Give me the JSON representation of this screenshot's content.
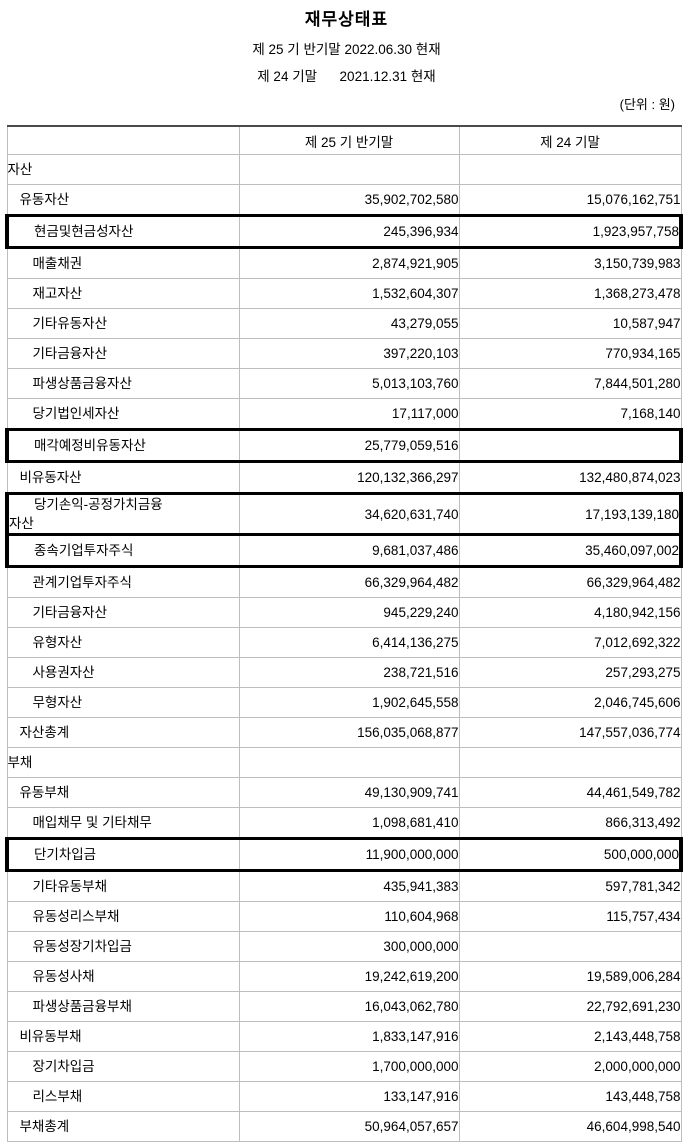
{
  "header": {
    "title": "재무상태표",
    "period_lines": [
      "제 25 기 반기말 2022.06.30 현재",
      "제 24 기말      2021.12.31 현재"
    ],
    "unit_note": "(단위 : 원)"
  },
  "table": {
    "columns": [
      "",
      "제 25 기 반기말",
      "제 24 기말"
    ],
    "rows": [
      {
        "label": "자산",
        "indent": 0,
        "v1": "",
        "v2": "",
        "hl": false
      },
      {
        "label": "유동자산",
        "indent": 1,
        "v1": "35,902,702,580",
        "v2": "15,076,162,751",
        "hl": false
      },
      {
        "label": "현금및현금성자산",
        "indent": 2,
        "v1": "245,396,934",
        "v2": "1,923,957,758",
        "hl": true
      },
      {
        "label": "매출채권",
        "indent": 2,
        "v1": "2,874,921,905",
        "v2": "3,150,739,983",
        "hl": false
      },
      {
        "label": "재고자산",
        "indent": 2,
        "v1": "1,532,604,307",
        "v2": "1,368,273,478",
        "hl": false
      },
      {
        "label": "기타유동자산",
        "indent": 2,
        "v1": "43,279,055",
        "v2": "10,587,947",
        "hl": false
      },
      {
        "label": "기타금융자산",
        "indent": 2,
        "v1": "397,220,103",
        "v2": "770,934,165",
        "hl": false
      },
      {
        "label": "파생상품금융자산",
        "indent": 2,
        "v1": "5,013,103,760",
        "v2": "7,844,501,280",
        "hl": false
      },
      {
        "label": "당기법인세자산",
        "indent": 2,
        "v1": "17,117,000",
        "v2": "7,168,140",
        "hl": false
      },
      {
        "label": "매각예정비유동자산",
        "indent": 2,
        "v1": "25,779,059,516",
        "v2": "",
        "hl": true
      },
      {
        "label": "비유동자산",
        "indent": 1,
        "v1": "120,132,366,297",
        "v2": "132,480,874,023",
        "hl": false
      },
      {
        "label": "당기손익-공정가치금융\n자산",
        "indent": 2,
        "v1": "34,620,631,740",
        "v2": "17,193,139,180",
        "hl": true,
        "tall": true
      },
      {
        "label": "종속기업투자주식",
        "indent": 2,
        "v1": "9,681,037,486",
        "v2": "35,460,097,002",
        "hl": true
      },
      {
        "label": "관계기업투자주식",
        "indent": 2,
        "v1": "66,329,964,482",
        "v2": "66,329,964,482",
        "hl": false
      },
      {
        "label": "기타금융자산",
        "indent": 2,
        "v1": "945,229,240",
        "v2": "4,180,942,156",
        "hl": false
      },
      {
        "label": "유형자산",
        "indent": 2,
        "v1": "6,414,136,275",
        "v2": "7,012,692,322",
        "hl": false
      },
      {
        "label": "사용권자산",
        "indent": 2,
        "v1": "238,721,516",
        "v2": "257,293,275",
        "hl": false
      },
      {
        "label": "무형자산",
        "indent": 2,
        "v1": "1,902,645,558",
        "v2": "2,046,745,606",
        "hl": false
      },
      {
        "label": "자산총계",
        "indent": 1,
        "v1": "156,035,068,877",
        "v2": "147,557,036,774",
        "hl": false
      },
      {
        "label": "부채",
        "indent": 0,
        "v1": "",
        "v2": "",
        "hl": false
      },
      {
        "label": "유동부채",
        "indent": 1,
        "v1": "49,130,909,741",
        "v2": "44,461,549,782",
        "hl": false
      },
      {
        "label": "매입채무 및 기타채무",
        "indent": 2,
        "v1": "1,098,681,410",
        "v2": "866,313,492",
        "hl": false
      },
      {
        "label": "단기차입금",
        "indent": 2,
        "v1": "11,900,000,000",
        "v2": "500,000,000",
        "hl": true
      },
      {
        "label": "기타유동부채",
        "indent": 2,
        "v1": "435,941,383",
        "v2": "597,781,342",
        "hl": false
      },
      {
        "label": "유동성리스부채",
        "indent": 2,
        "v1": "110,604,968",
        "v2": "115,757,434",
        "hl": false
      },
      {
        "label": "유동성장기차입금",
        "indent": 2,
        "v1": "300,000,000",
        "v2": "",
        "hl": false
      },
      {
        "label": "유동성사채",
        "indent": 2,
        "v1": "19,242,619,200",
        "v2": "19,589,006,284",
        "hl": false
      },
      {
        "label": "파생상품금융부채",
        "indent": 2,
        "v1": "16,043,062,780",
        "v2": "22,792,691,230",
        "hl": false
      },
      {
        "label": "비유동부채",
        "indent": 1,
        "v1": "1,833,147,916",
        "v2": "2,143,448,758",
        "hl": false
      },
      {
        "label": "장기차입금",
        "indent": 2,
        "v1": "1,700,000,000",
        "v2": "2,000,000,000",
        "hl": false
      },
      {
        "label": "리스부채",
        "indent": 2,
        "v1": "133,147,916",
        "v2": "143,448,758",
        "hl": false
      },
      {
        "label": "부채총계",
        "indent": 1,
        "v1": "50,964,057,657",
        "v2": "46,604,998,540",
        "hl": false
      }
    ]
  }
}
